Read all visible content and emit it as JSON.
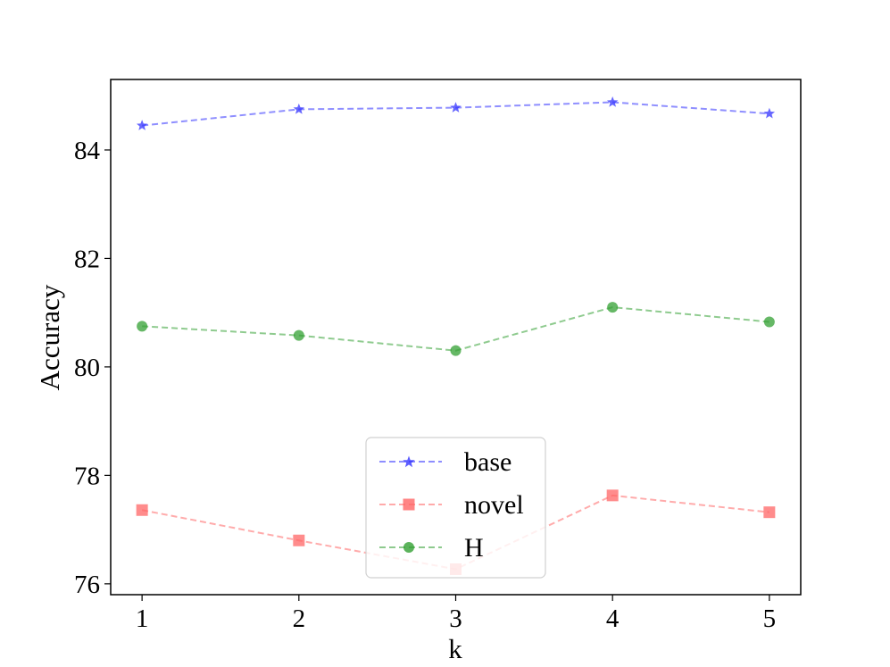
{
  "chart_data": {
    "type": "line",
    "title": "",
    "xlabel": "k",
    "ylabel": "Accuracy",
    "x": [
      1,
      2,
      3,
      4,
      5
    ],
    "xticks": [
      "1",
      "2",
      "3",
      "4",
      "5"
    ],
    "yticks": [
      "76",
      "78",
      "80",
      "82",
      "84"
    ],
    "xlim": [
      0.8,
      5.2
    ],
    "ylim": [
      75.8,
      85.3
    ],
    "grid": false,
    "legend": {
      "placement": "lower-center"
    },
    "series": [
      {
        "name": "base",
        "color": "#3333ff",
        "marker": "star",
        "line_style": "dashed",
        "values": [
          84.45,
          84.75,
          84.78,
          84.88,
          84.67
        ]
      },
      {
        "name": "novel",
        "color": "#ff6666",
        "marker": "square",
        "line_style": "dashed",
        "values": [
          77.36,
          76.8,
          76.27,
          77.63,
          77.32
        ]
      },
      {
        "name": "H",
        "color": "#33a033",
        "marker": "circle",
        "line_style": "dashed",
        "values": [
          80.75,
          80.58,
          80.3,
          81.1,
          80.83
        ]
      }
    ]
  }
}
